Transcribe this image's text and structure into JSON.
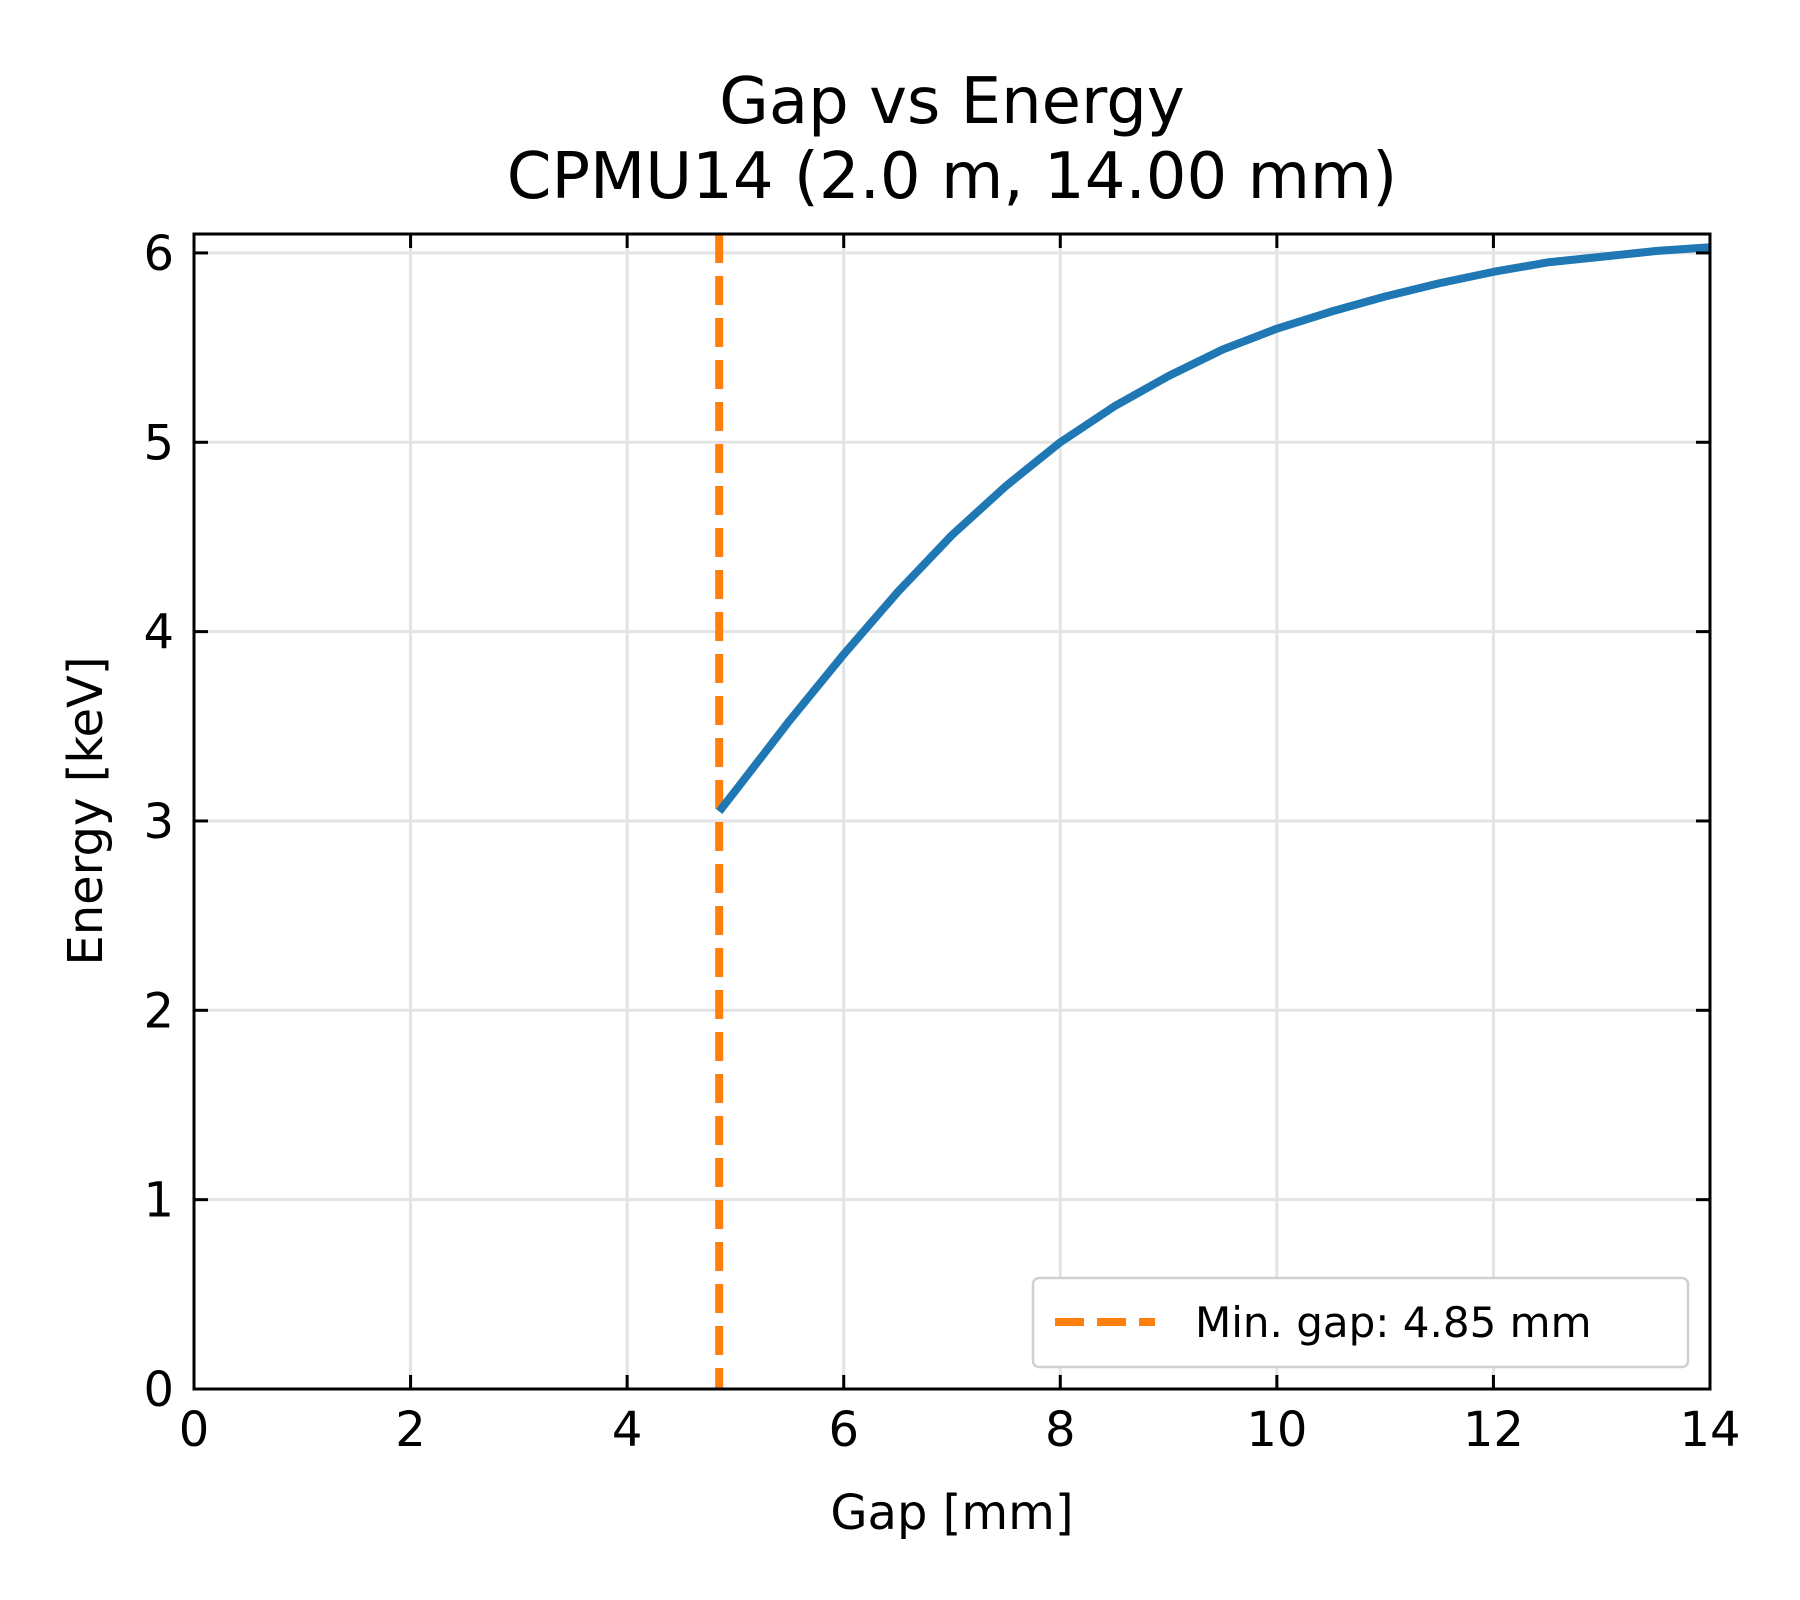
{
  "chart_data": {
    "type": "line",
    "title": "Gap vs Energy",
    "subtitle": "CPMU14 (2.0 m, 14.00 mm)",
    "xlabel": "Gap [mm]",
    "ylabel": "Energy [keV]",
    "xlim": [
      0,
      14
    ],
    "ylim": [
      0,
      6.1
    ],
    "xticks": [
      0,
      2,
      4,
      6,
      8,
      10,
      12,
      14
    ],
    "yticks": [
      0,
      1,
      2,
      3,
      4,
      5,
      6
    ],
    "grid": true,
    "tick_direction": "in",
    "legend_position": "lower-right",
    "series": [
      {
        "color": "#1f77b4",
        "style": "solid",
        "x": [
          4.85,
          5.0,
          5.5,
          6.0,
          6.5,
          7.0,
          7.5,
          8.0,
          8.5,
          9.0,
          9.5,
          10.0,
          10.5,
          11.0,
          11.5,
          12.0,
          12.5,
          13.0,
          13.5,
          14.0
        ],
        "y": [
          3.05,
          3.16,
          3.53,
          3.88,
          4.21,
          4.51,
          4.77,
          5.0,
          5.19,
          5.35,
          5.49,
          5.6,
          5.69,
          5.77,
          5.84,
          5.9,
          5.95,
          5.98,
          6.01,
          6.03
        ]
      }
    ],
    "vlines": [
      {
        "name": "Min. gap: 4.85 mm",
        "x": 4.85,
        "color": "#ff7f0e",
        "style": "dashed"
      }
    ]
  }
}
